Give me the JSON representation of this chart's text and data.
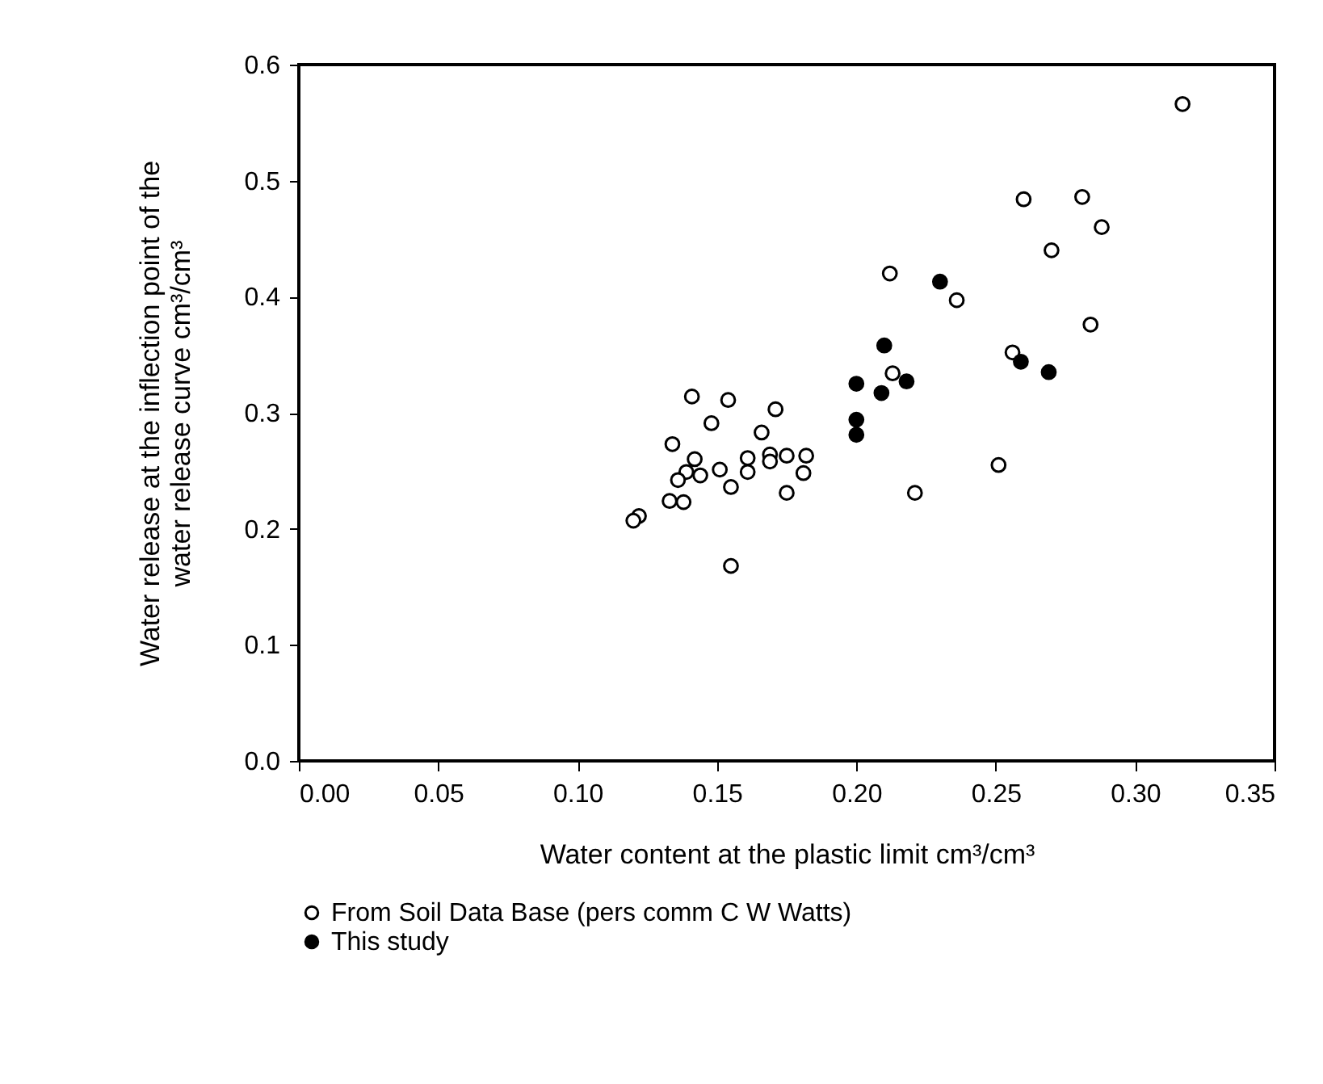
{
  "chart_data": {
    "type": "scatter",
    "xlabel": "Water content at the plastic limit cm³/cm³",
    "ylabel": "Water release at the inflection point of the\nwater release curve cm³/cm³",
    "series": [
      {
        "name": "From Soil Data Base (pers comm C W Watts)",
        "color": "#ffffff",
        "x": [
          0.317,
          0.26,
          0.281,
          0.288,
          0.27,
          0.236,
          0.284,
          0.256,
          0.251,
          0.212,
          0.213,
          0.221,
          0.141,
          0.154,
          0.171,
          0.148,
          0.166,
          0.134,
          0.142,
          0.161,
          0.169,
          0.169,
          0.175,
          0.182,
          0.139,
          0.144,
          0.151,
          0.161,
          0.181,
          0.136,
          0.155,
          0.175,
          0.133,
          0.138,
          0.122,
          0.12,
          0.155
        ],
        "values": [
          0.566,
          0.484,
          0.486,
          0.46,
          0.44,
          0.397,
          0.376,
          0.352,
          0.255,
          0.42,
          0.334,
          0.231,
          0.314,
          0.311,
          0.303,
          0.291,
          0.283,
          0.273,
          0.26,
          0.261,
          0.264,
          0.258,
          0.263,
          0.263,
          0.249,
          0.246,
          0.251,
          0.249,
          0.248,
          0.242,
          0.236,
          0.231,
          0.224,
          0.223,
          0.211,
          0.207,
          0.168
        ]
      },
      {
        "name": "This study",
        "color": "#000000",
        "x": [
          0.2,
          0.209,
          0.218,
          0.2,
          0.2,
          0.21,
          0.23,
          0.259,
          0.269
        ],
        "values": [
          0.325,
          0.317,
          0.327,
          0.294,
          0.281,
          0.358,
          0.413,
          0.344,
          0.335
        ]
      }
    ],
    "xlim": [
      0,
      0.35
    ],
    "xticks": [
      {
        "value": 0,
        "label": "0.00"
      },
      {
        "value": 0.05,
        "label": "0.05"
      },
      {
        "value": 0.1,
        "label": "0.10"
      },
      {
        "value": 0.15,
        "label": "0.15"
      },
      {
        "value": 0.2,
        "label": "0.20"
      },
      {
        "value": 0.25,
        "label": "0.25"
      },
      {
        "value": 0.3,
        "label": "0.30"
      },
      {
        "value": 0.35,
        "label": "0.35"
      }
    ],
    "ylim": [
      0,
      0.6
    ],
    "yticks": [
      {
        "value": 0,
        "label": "0.0"
      },
      {
        "value": 0.1,
        "label": "0.1"
      },
      {
        "value": 0.2,
        "label": "0.2"
      },
      {
        "value": 0.3,
        "label": "0.3"
      },
      {
        "value": 0.4,
        "label": "0.4"
      },
      {
        "value": 0.5,
        "label": "0.5"
      },
      {
        "value": 0.6,
        "label": "0.6"
      }
    ],
    "grid": false,
    "legend": "bottom",
    "marker": "circle"
  }
}
